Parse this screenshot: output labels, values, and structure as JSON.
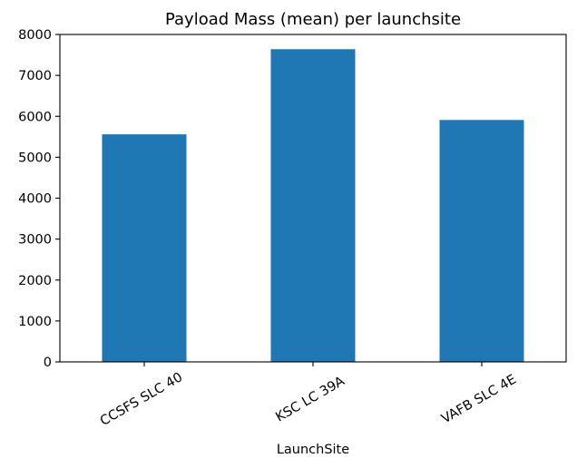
{
  "chart_data": {
    "type": "bar",
    "title": "Payload Mass (mean) per launchsite",
    "xlabel": "LaunchSite",
    "ylabel": "",
    "categories": [
      "CCSFS SLC 40",
      "KSC LC 39A",
      "VAFB SLC 4E"
    ],
    "values": [
      5560,
      7640,
      5910
    ],
    "ylim": [
      0,
      8000
    ],
    "yticks": [
      0,
      1000,
      2000,
      3000,
      4000,
      5000,
      6000,
      7000,
      8000
    ],
    "grid": false,
    "legend": "none",
    "bar_color": "#1f77b4"
  }
}
